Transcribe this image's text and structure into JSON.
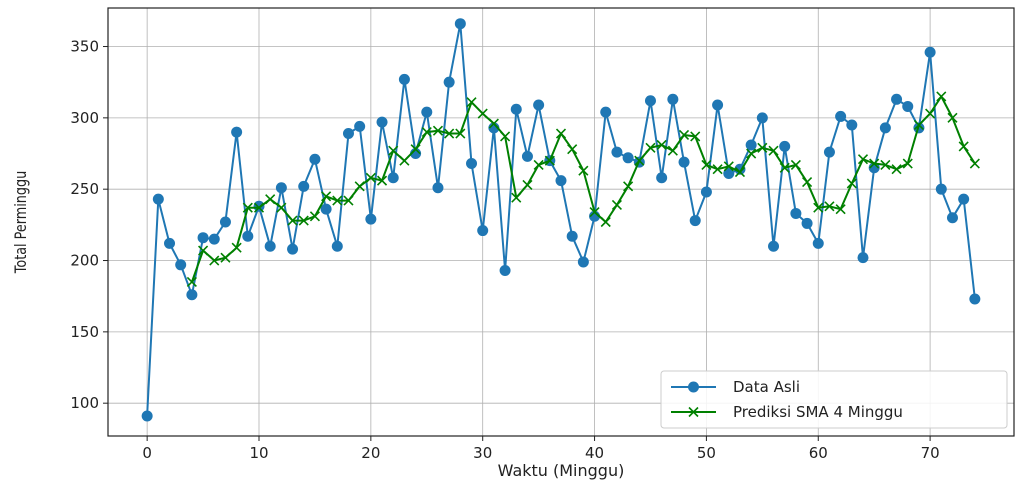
{
  "chart_data": {
    "type": "line",
    "title": "",
    "xlabel": "Waktu (Minggu)",
    "ylabel": "Total Perminggu",
    "xlim": [
      -3.5,
      77.5
    ],
    "ylim": [
      77,
      377
    ],
    "xticks": [
      0,
      10,
      20,
      30,
      40,
      50,
      60,
      70
    ],
    "yticks": [
      100,
      150,
      200,
      250,
      300,
      350
    ],
    "grid": true,
    "legend_position": "lower-right",
    "series": [
      {
        "name": "Data Asli",
        "color": "#1f77b4",
        "marker": "circle",
        "x_start": 0,
        "values": [
          91,
          243,
          212,
          197,
          176,
          216,
          215,
          227,
          290,
          217,
          238,
          210,
          251,
          208,
          252,
          271,
          236,
          210,
          289,
          294,
          229,
          297,
          258,
          327,
          275,
          304,
          251,
          325,
          366,
          268,
          221,
          293,
          193,
          306,
          273,
          309,
          270,
          256,
          217,
          199,
          231,
          304,
          276,
          272,
          269,
          312,
          258,
          313,
          269,
          228,
          248,
          309,
          261,
          264,
          281,
          300,
          210,
          280,
          233,
          226,
          212,
          276,
          301,
          295,
          202,
          265,
          293,
          313,
          308,
          293,
          346,
          250,
          230,
          243,
          173
        ]
      },
      {
        "name": "Prediksi SMA 4 Minggu",
        "color": "#008000",
        "marker": "x",
        "x_start": 4,
        "values": [
          185,
          207,
          200,
          202,
          209,
          237,
          237,
          243,
          237,
          228,
          228,
          231,
          245,
          242,
          242,
          252,
          258,
          256,
          277,
          270,
          278,
          290,
          291,
          289,
          289,
          311,
          303,
          296,
          287,
          244,
          253,
          267,
          270,
          289,
          278,
          263,
          234,
          227,
          239,
          252,
          270,
          279,
          281,
          277,
          288,
          287,
          267,
          264,
          266,
          262,
          275,
          279,
          277,
          265,
          267,
          255,
          237,
          238,
          236,
          254,
          271,
          268,
          267,
          264,
          268,
          295,
          303,
          315,
          300,
          280,
          268
        ]
      }
    ]
  }
}
